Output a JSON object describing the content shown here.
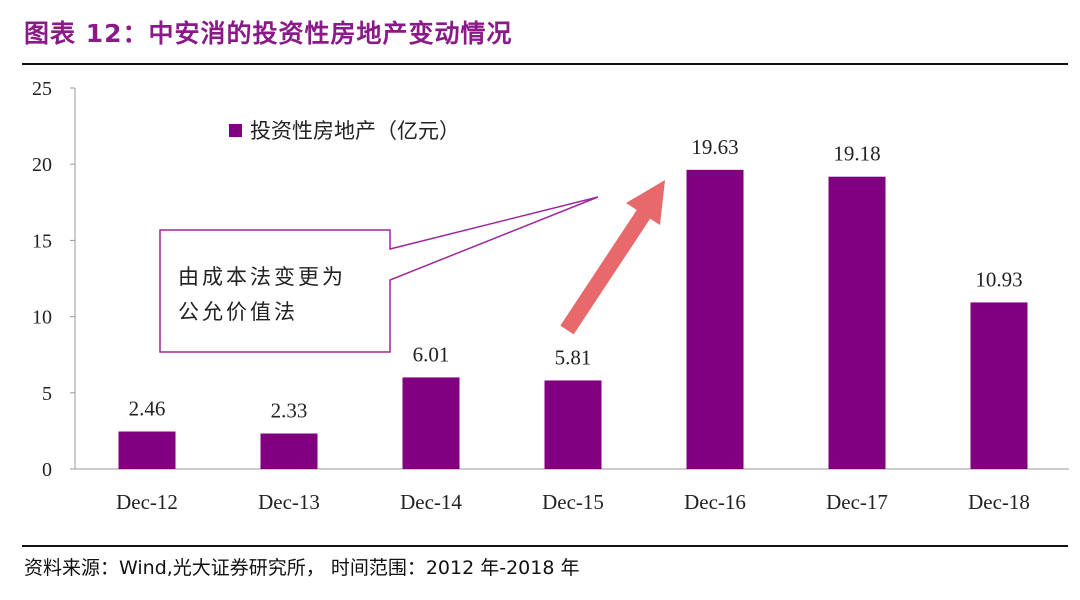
{
  "title": "图表 12：中安消的投资性房地产变动情况",
  "source": "资料来源：Wind,光大证券研究所，  时间范围：2012 年-2018 年",
  "colors": {
    "bar": "#800080",
    "title": "#8B1A89",
    "arrow": "#E8696B",
    "callout_border": "#9B2A9B"
  },
  "chart_data": {
    "type": "bar",
    "categories": [
      "Dec-12",
      "Dec-13",
      "Dec-14",
      "Dec-15",
      "Dec-16",
      "Dec-17",
      "Dec-18"
    ],
    "series": [
      {
        "name": "投资性房地产（亿元）",
        "values": [
          2.46,
          2.33,
          6.01,
          5.81,
          19.63,
          19.18,
          10.93
        ]
      }
    ],
    "data_labels": [
      "2.46",
      "2.33",
      "6.01",
      "5.81",
      "19.63",
      "19.18",
      "10.93"
    ],
    "ylim": [
      0,
      25
    ],
    "yticks": [
      "0",
      "5",
      "10",
      "15",
      "20",
      "25"
    ],
    "grid": false,
    "legend_position": "top-left",
    "annotation": {
      "lines": [
        "由成本法变更为",
        "公允价值法"
      ]
    }
  }
}
